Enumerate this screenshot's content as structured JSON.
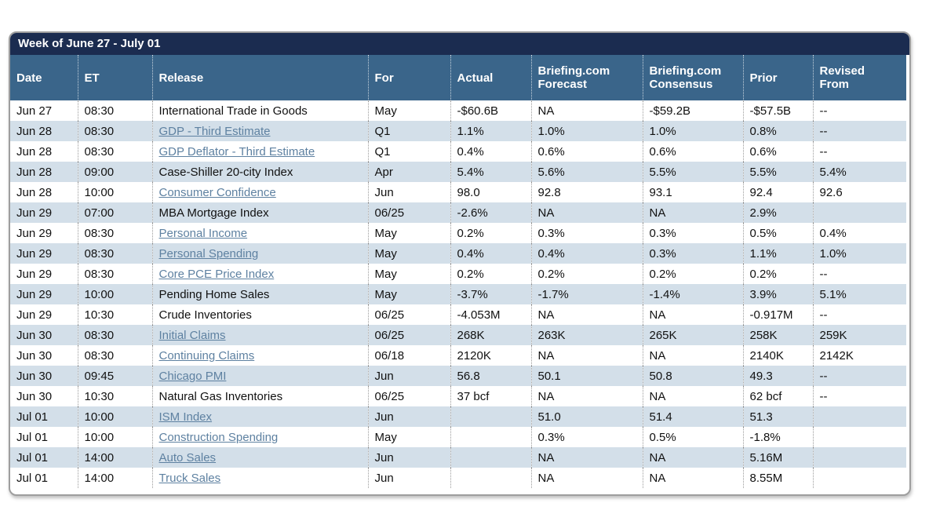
{
  "title": "Week of June 27 - July 01",
  "table": {
    "columns": [
      "Date",
      "ET",
      "Release",
      "For",
      "Actual",
      "Briefing.com Forecast",
      "Briefing.com Consensus",
      "Prior",
      "Revised From"
    ],
    "rows": [
      {
        "date": "Jun 27",
        "et": "08:30",
        "release": "International Trade in Goods",
        "link": false,
        "for": "May",
        "actual": "-$60.6B",
        "forecast": "NA",
        "consensus": "-$59.2B",
        "prior": "-$57.5B",
        "revised": "--"
      },
      {
        "date": "Jun 28",
        "et": "08:30",
        "release": "GDP - Third Estimate",
        "link": true,
        "for": "Q1",
        "actual": "1.1%",
        "forecast": "1.0%",
        "consensus": "1.0%",
        "prior": "0.8%",
        "revised": "--"
      },
      {
        "date": "Jun 28",
        "et": "08:30",
        "release": "GDP Deflator - Third Estimate",
        "link": true,
        "for": "Q1",
        "actual": "0.4%",
        "forecast": "0.6%",
        "consensus": "0.6%",
        "prior": "0.6%",
        "revised": "--"
      },
      {
        "date": "Jun 28",
        "et": "09:00",
        "release": "Case-Shiller 20-city Index",
        "link": false,
        "for": "Apr",
        "actual": "5.4%",
        "forecast": "5.6%",
        "consensus": "5.5%",
        "prior": "5.5%",
        "revised": "5.4%"
      },
      {
        "date": "Jun 28",
        "et": "10:00",
        "release": "Consumer Confidence",
        "link": true,
        "for": "Jun",
        "actual": "98.0",
        "forecast": "92.8",
        "consensus": "93.1",
        "prior": "92.4",
        "revised": "92.6"
      },
      {
        "date": "Jun 29",
        "et": "07:00",
        "release": "MBA Mortgage Index",
        "link": false,
        "for": "06/25",
        "actual": "-2.6%",
        "forecast": "NA",
        "consensus": "NA",
        "prior": "2.9%",
        "revised": ""
      },
      {
        "date": "Jun 29",
        "et": "08:30",
        "release": "Personal Income",
        "link": true,
        "for": "May",
        "actual": "0.2%",
        "forecast": "0.3%",
        "consensus": "0.3%",
        "prior": "0.5%",
        "revised": "0.4%"
      },
      {
        "date": "Jun 29",
        "et": "08:30",
        "release": "Personal Spending",
        "link": true,
        "for": "May",
        "actual": "0.4%",
        "forecast": "0.4%",
        "consensus": "0.3%",
        "prior": "1.1%",
        "revised": "1.0%"
      },
      {
        "date": "Jun 29",
        "et": "08:30",
        "release": "Core PCE Price Index",
        "link": true,
        "for": "May",
        "actual": "0.2%",
        "forecast": "0.2%",
        "consensus": "0.2%",
        "prior": "0.2%",
        "revised": "--"
      },
      {
        "date": "Jun 29",
        "et": "10:00",
        "release": "Pending Home Sales",
        "link": false,
        "for": "May",
        "actual": "-3.7%",
        "forecast": "-1.7%",
        "consensus": "-1.4%",
        "prior": "3.9%",
        "revised": "5.1%"
      },
      {
        "date": "Jun 29",
        "et": "10:30",
        "release": "Crude Inventories",
        "link": false,
        "for": "06/25",
        "actual": "-4.053M",
        "forecast": "NA",
        "consensus": "NA",
        "prior": "-0.917M",
        "revised": "--"
      },
      {
        "date": "Jun 30",
        "et": "08:30",
        "release": "Initial Claims",
        "link": true,
        "for": "06/25",
        "actual": "268K",
        "forecast": "263K",
        "consensus": "265K",
        "prior": "258K",
        "revised": "259K"
      },
      {
        "date": "Jun 30",
        "et": "08:30",
        "release": "Continuing Claims",
        "link": true,
        "for": "06/18",
        "actual": "2120K",
        "forecast": "NA",
        "consensus": "NA",
        "prior": "2140K",
        "revised": "2142K"
      },
      {
        "date": "Jun 30",
        "et": "09:45",
        "release": "Chicago PMI",
        "link": true,
        "for": "Jun",
        "actual": "56.8",
        "forecast": "50.1",
        "consensus": "50.8",
        "prior": "49.3",
        "revised": "--"
      },
      {
        "date": "Jun 30",
        "et": "10:30",
        "release": "Natural Gas Inventories",
        "link": false,
        "for": "06/25",
        "actual": "37 bcf",
        "forecast": "NA",
        "consensus": "NA",
        "prior": "62 bcf",
        "revised": "--"
      },
      {
        "date": "Jul 01",
        "et": "10:00",
        "release": "ISM Index",
        "link": true,
        "for": "Jun",
        "actual": "",
        "forecast": "51.0",
        "consensus": "51.4",
        "prior": "51.3",
        "revised": ""
      },
      {
        "date": "Jul 01",
        "et": "10:00",
        "release": "Construction Spending",
        "link": true,
        "for": "May",
        "actual": "",
        "forecast": "0.3%",
        "consensus": "0.5%",
        "prior": "-1.8%",
        "revised": ""
      },
      {
        "date": "Jul 01",
        "et": "14:00",
        "release": "Auto Sales",
        "link": true,
        "for": "Jun",
        "actual": "",
        "forecast": "NA",
        "consensus": "NA",
        "prior": "5.16M",
        "revised": ""
      },
      {
        "date": "Jul 01",
        "et": "14:00",
        "release": "Truck Sales",
        "link": true,
        "for": "Jun",
        "actual": "",
        "forecast": "NA",
        "consensus": "NA",
        "prior": "8.55M",
        "revised": ""
      }
    ]
  },
  "colors": {
    "title_bar": "#1b2c50",
    "header_row": "#3a658a",
    "row_alt": "#d3dfe9",
    "link": "#5e81a1"
  }
}
